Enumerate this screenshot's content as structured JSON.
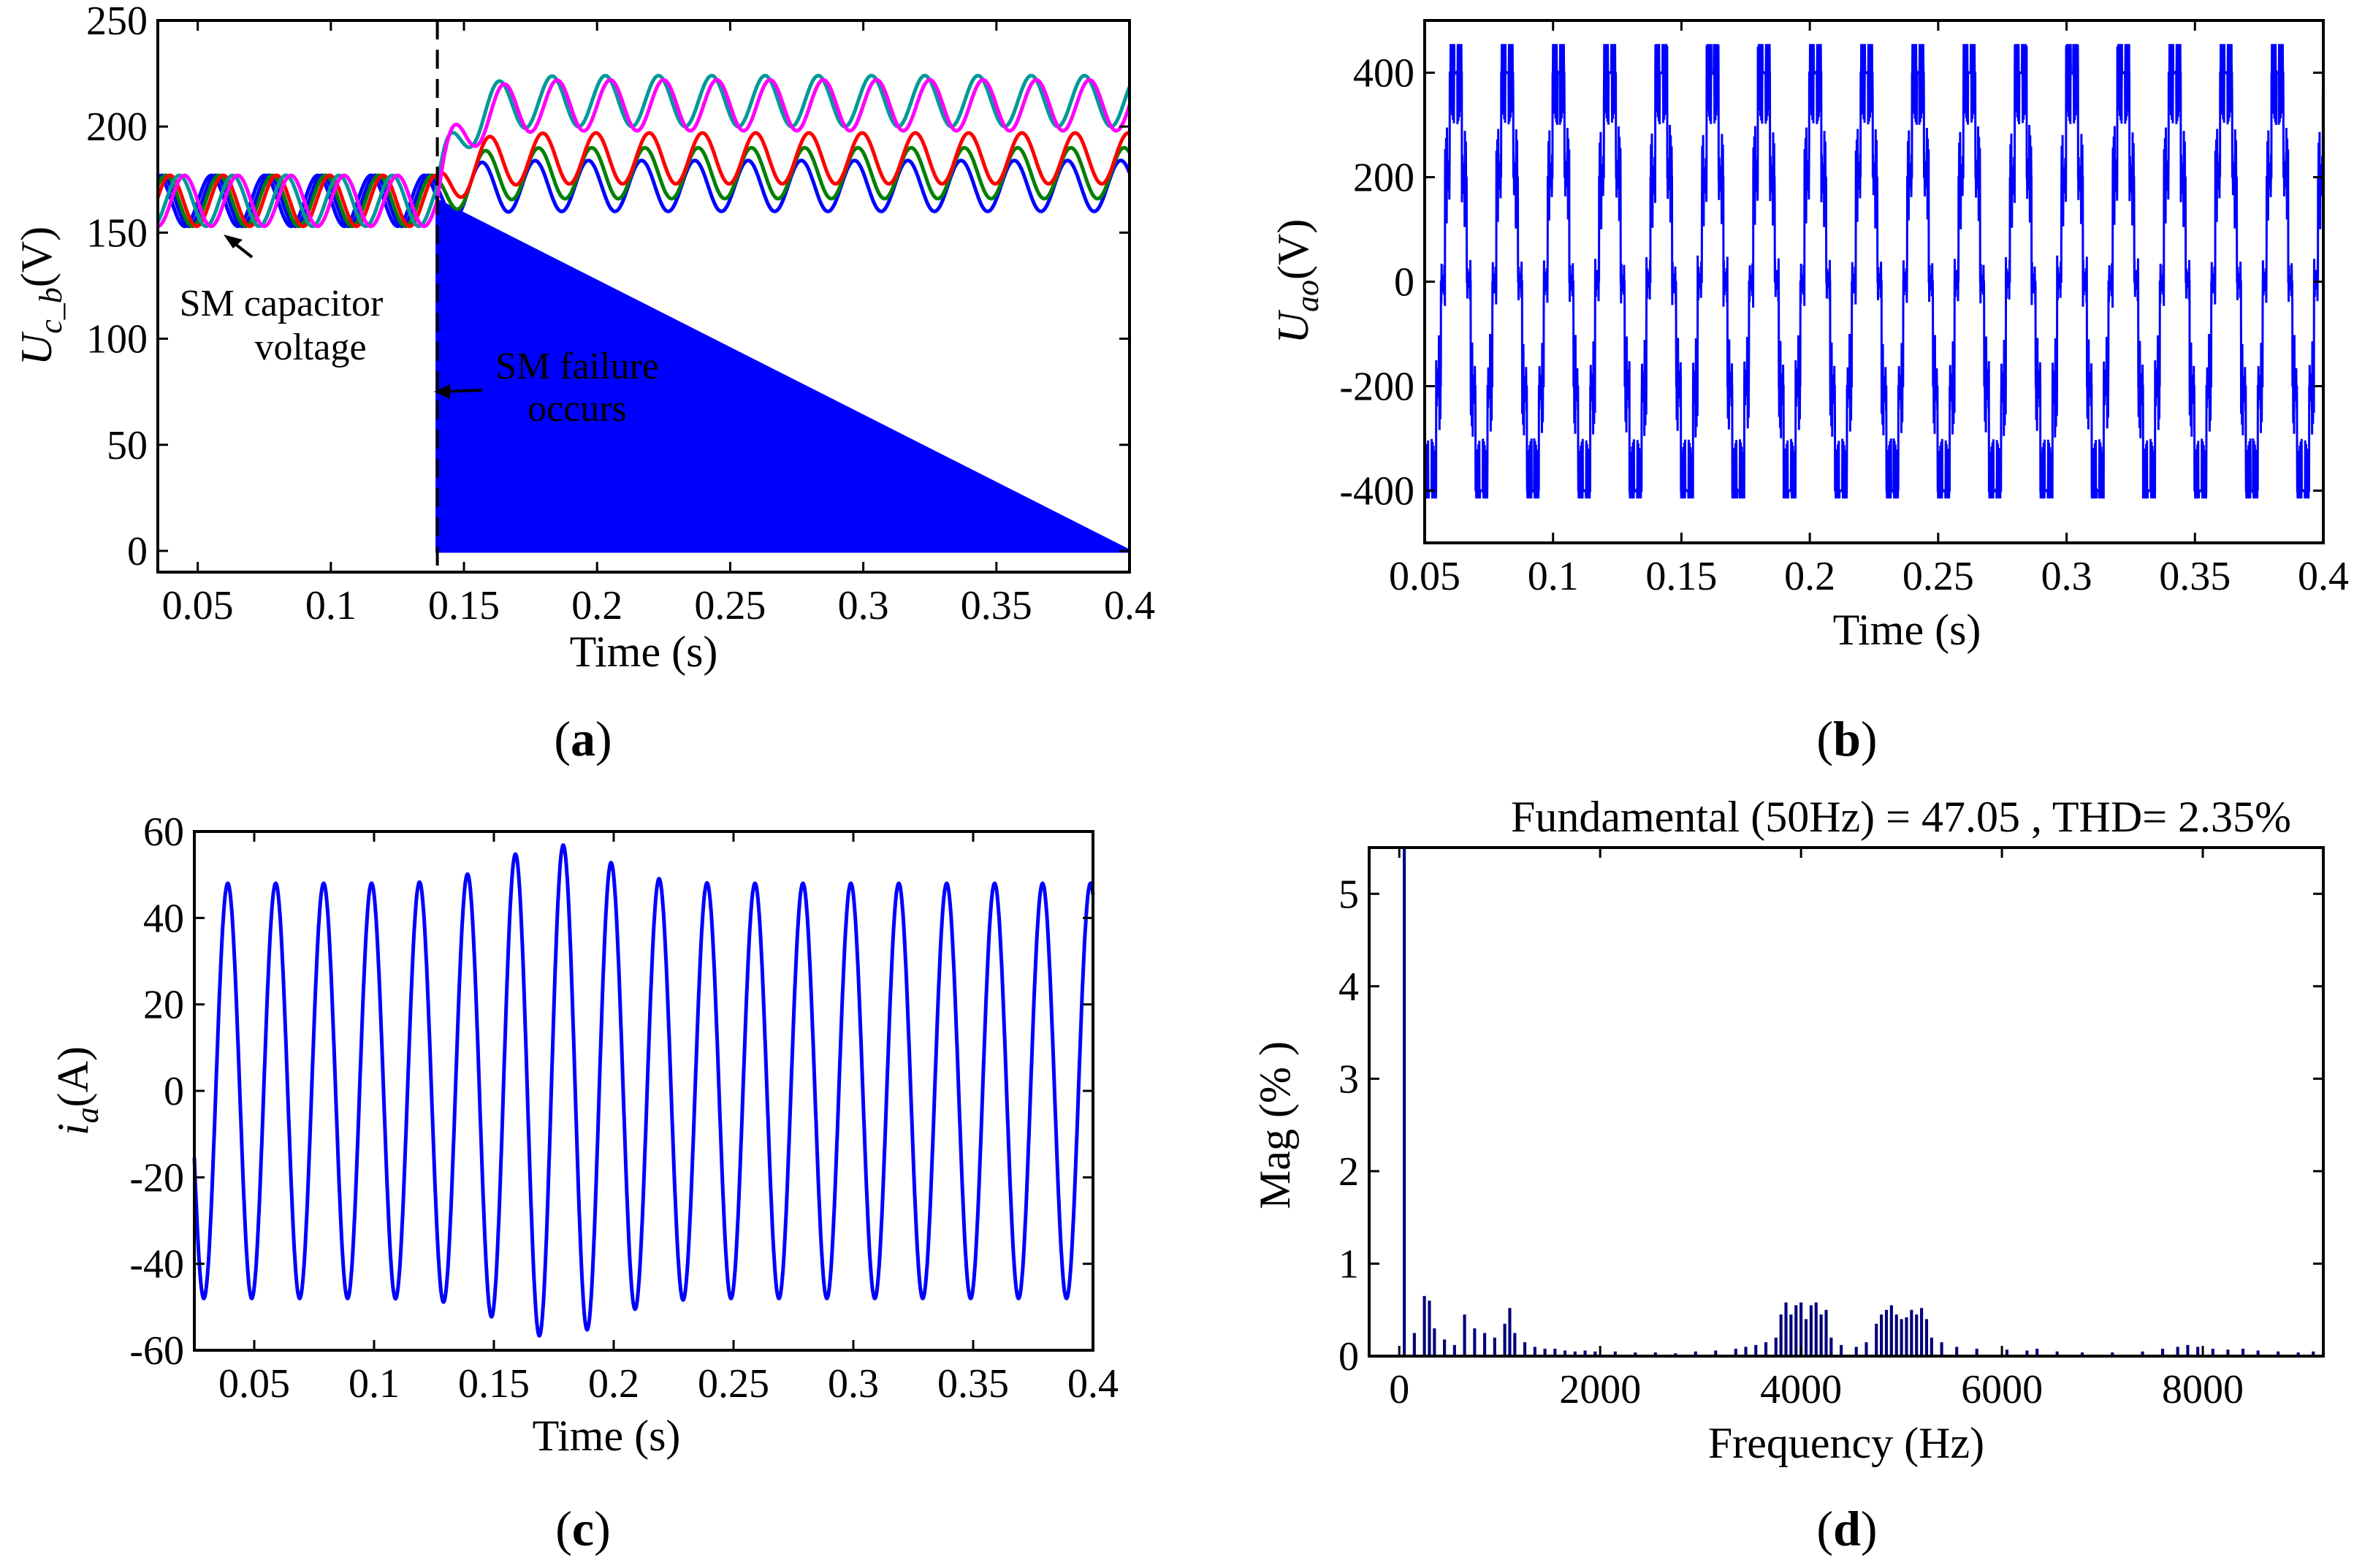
{
  "chart_data": [
    {
      "panel": "(a)",
      "panel_letter": "a",
      "type": "line",
      "xlabel": "Time (s)",
      "ylabel": "U_c_b(V)",
      "ylabel_main": "U",
      "ylabel_sub": "c_b",
      "ylabel_unit": "(V)",
      "xlim": [
        0.035,
        0.4
      ],
      "ylim": [
        -10,
        250
      ],
      "xticks": [
        0.05,
        0.1,
        0.15,
        0.2,
        0.25,
        0.3,
        0.35,
        0.4
      ],
      "xtick_labels": [
        "0.05",
        "0.1",
        "0.15",
        "0.2",
        "0.25",
        "0.3",
        "0.35",
        "0.4"
      ],
      "yticks": [
        0,
        50,
        100,
        150,
        200,
        250
      ],
      "ytick_labels": [
        "0",
        "50",
        "100",
        "150",
        "200",
        "250"
      ],
      "fault_time": 0.14,
      "ripple_period": 0.02,
      "series": [
        {
          "color": "#ff00ff",
          "pre_fault_mean": 165,
          "pre_fault_amplitude": 12,
          "post_fault_mean": 210,
          "post_fault_amplitude": 12
        },
        {
          "color": "#009999",
          "pre_fault_mean": 165,
          "pre_fault_amplitude": 12,
          "post_fault_mean": 212,
          "post_fault_amplitude": 12
        },
        {
          "color": "#ff0000",
          "pre_fault_mean": 165,
          "pre_fault_amplitude": 12,
          "post_fault_mean": 185,
          "post_fault_amplitude": 12
        },
        {
          "color": "#008000",
          "pre_fault_mean": 165,
          "pre_fault_amplitude": 12,
          "post_fault_mean": 178,
          "post_fault_amplitude": 12
        },
        {
          "color": "#0000ff",
          "pre_fault_mean": 165,
          "pre_fault_amplitude": 12,
          "post_fault_mean": 172,
          "post_fault_amplitude": 12
        },
        {
          "color": "#0000ff",
          "pre_fault_mean": 165,
          "pre_fault_amplitude": 12,
          "post_fault_value": 0
        }
      ],
      "annotations": [
        {
          "text_lines": [
            "SM capacitor",
            "voltage"
          ],
          "x": 0.06,
          "y": 110,
          "arrow_to": [
            0.071,
            160
          ]
        },
        {
          "text_lines": [
            "SM failure",
            "occurs"
          ],
          "x": 0.185,
          "y": 75,
          "arrow_to": [
            0.141,
            80
          ]
        }
      ]
    },
    {
      "panel": "(b)",
      "panel_letter": "b",
      "type": "line",
      "xlabel": "Time (s)",
      "ylabel": "U_ao(V)",
      "ylabel_main": "U",
      "ylabel_sub": "ao",
      "ylabel_unit": "(V)",
      "xlim": [
        0.05,
        0.4
      ],
      "ylim": [
        -500,
        500
      ],
      "xticks": [
        0.05,
        0.1,
        0.15,
        0.2,
        0.25,
        0.3,
        0.35,
        0.4
      ],
      "xtick_labels": [
        "0.05",
        "0.1",
        "0.15",
        "0.2",
        "0.25",
        "0.3",
        "0.35",
        "0.4"
      ],
      "yticks": [
        -400,
        -200,
        0,
        200,
        400
      ],
      "ytick_labels": [
        "-400",
        "-200",
        "0",
        "200",
        "400"
      ],
      "frequency_hz": 50,
      "peak_voltage": 415,
      "level_step": 200,
      "series": [
        {
          "color": "#0000ff"
        }
      ]
    },
    {
      "panel": "(c)",
      "panel_letter": "c",
      "type": "line",
      "xlabel": "Time (s)",
      "ylabel": "i_a(A)",
      "ylabel_main": "i",
      "ylabel_sub": "a",
      "ylabel_unit": "(A)",
      "xlim": [
        0.025,
        0.4
      ],
      "ylim": [
        -60,
        60
      ],
      "xticks": [
        0.05,
        0.1,
        0.15,
        0.2,
        0.25,
        0.3,
        0.35,
        0.4
      ],
      "xtick_labels": [
        "0.05",
        "0.1",
        "0.15",
        "0.2",
        "0.25",
        "0.3",
        "0.35",
        "0.4"
      ],
      "yticks": [
        -60,
        -40,
        -20,
        0,
        20,
        40,
        60
      ],
      "ytick_labels": [
        "-60",
        "-40",
        "-20",
        "0",
        "20",
        "40",
        "60"
      ],
      "frequency_hz": 50,
      "amplitude": 48,
      "transient_peak": 57,
      "transient_trough": -52,
      "series": [
        {
          "color": "#0000ff"
        }
      ]
    },
    {
      "panel": "(d)",
      "panel_letter": "d",
      "type": "bar",
      "title": "Fundamental (50Hz) = 47.05 , THD= 2.35%",
      "xlabel": "Frequency (Hz)",
      "ylabel": "Mag (% )",
      "xlim": [
        -300,
        9200
      ],
      "ylim": [
        0,
        5.5
      ],
      "xticks": [
        0,
        2000,
        4000,
        6000,
        8000
      ],
      "xtick_labels": [
        "0",
        "2000",
        "4000",
        "6000",
        "8000"
      ],
      "yticks": [
        0,
        1,
        2,
        3,
        4,
        5
      ],
      "ytick_labels": [
        "0",
        "1",
        "2",
        "3",
        "4",
        "5"
      ],
      "fundamental_hz": 50,
      "fundamental_magnitude_pct": 47.05,
      "thd_pct": 2.35,
      "bar_color": "#00007a",
      "harmonics": [
        {
          "f": 50,
          "mag": 5.5
        },
        {
          "f": 150,
          "mag": 0.25
        },
        {
          "f": 250,
          "mag": 0.65
        },
        {
          "f": 300,
          "mag": 0.6
        },
        {
          "f": 350,
          "mag": 0.3
        },
        {
          "f": 450,
          "mag": 0.18
        },
        {
          "f": 550,
          "mag": 0.12
        },
        {
          "f": 650,
          "mag": 0.45
        },
        {
          "f": 750,
          "mag": 0.3
        },
        {
          "f": 850,
          "mag": 0.25
        },
        {
          "f": 950,
          "mag": 0.2
        },
        {
          "f": 1050,
          "mag": 0.35
        },
        {
          "f": 1100,
          "mag": 0.52
        },
        {
          "f": 1150,
          "mag": 0.25
        },
        {
          "f": 1250,
          "mag": 0.15
        },
        {
          "f": 1350,
          "mag": 0.1
        },
        {
          "f": 1450,
          "mag": 0.08
        },
        {
          "f": 1550,
          "mag": 0.08
        },
        {
          "f": 1650,
          "mag": 0.06
        },
        {
          "f": 1750,
          "mag": 0.05
        },
        {
          "f": 1850,
          "mag": 0.06
        },
        {
          "f": 1950,
          "mag": 0.05
        },
        {
          "f": 2150,
          "mag": 0.05
        },
        {
          "f": 2350,
          "mag": 0.04
        },
        {
          "f": 2550,
          "mag": 0.04
        },
        {
          "f": 2750,
          "mag": 0.03
        },
        {
          "f": 2950,
          "mag": 0.05
        },
        {
          "f": 3150,
          "mag": 0.06
        },
        {
          "f": 3350,
          "mag": 0.08
        },
        {
          "f": 3450,
          "mag": 0.1
        },
        {
          "f": 3550,
          "mag": 0.12
        },
        {
          "f": 3650,
          "mag": 0.15
        },
        {
          "f": 3750,
          "mag": 0.2
        },
        {
          "f": 3800,
          "mag": 0.45
        },
        {
          "f": 3850,
          "mag": 0.58
        },
        {
          "f": 3900,
          "mag": 0.45
        },
        {
          "f": 3950,
          "mag": 0.55
        },
        {
          "f": 4000,
          "mag": 0.58
        },
        {
          "f": 4050,
          "mag": 0.4
        },
        {
          "f": 4100,
          "mag": 0.55
        },
        {
          "f": 4150,
          "mag": 0.58
        },
        {
          "f": 4200,
          "mag": 0.45
        },
        {
          "f": 4250,
          "mag": 0.5
        },
        {
          "f": 4300,
          "mag": 0.2
        },
        {
          "f": 4400,
          "mag": 0.12
        },
        {
          "f": 4550,
          "mag": 0.1
        },
        {
          "f": 4650,
          "mag": 0.15
        },
        {
          "f": 4750,
          "mag": 0.35
        },
        {
          "f": 4800,
          "mag": 0.45
        },
        {
          "f": 4850,
          "mag": 0.5
        },
        {
          "f": 4900,
          "mag": 0.55
        },
        {
          "f": 4950,
          "mag": 0.45
        },
        {
          "f": 5000,
          "mag": 0.4
        },
        {
          "f": 5050,
          "mag": 0.42
        },
        {
          "f": 5100,
          "mag": 0.5
        },
        {
          "f": 5150,
          "mag": 0.45
        },
        {
          "f": 5200,
          "mag": 0.52
        },
        {
          "f": 5250,
          "mag": 0.4
        },
        {
          "f": 5300,
          "mag": 0.2
        },
        {
          "f": 5400,
          "mag": 0.15
        },
        {
          "f": 5550,
          "mag": 0.1
        },
        {
          "f": 5750,
          "mag": 0.08
        },
        {
          "f": 6050,
          "mag": 0.07
        },
        {
          "f": 6250,
          "mag": 0.06
        },
        {
          "f": 6350,
          "mag": 0.08
        },
        {
          "f": 6550,
          "mag": 0.05
        },
        {
          "f": 6800,
          "mag": 0.04
        },
        {
          "f": 7100,
          "mag": 0.04
        },
        {
          "f": 7400,
          "mag": 0.05
        },
        {
          "f": 7600,
          "mag": 0.08
        },
        {
          "f": 7750,
          "mag": 0.1
        },
        {
          "f": 7850,
          "mag": 0.12
        },
        {
          "f": 7950,
          "mag": 0.1
        },
        {
          "f": 8100,
          "mag": 0.08
        },
        {
          "f": 8250,
          "mag": 0.07
        },
        {
          "f": 8400,
          "mag": 0.08
        },
        {
          "f": 8550,
          "mag": 0.06
        },
        {
          "f": 8750,
          "mag": 0.05
        },
        {
          "f": 8950,
          "mag": 0.04
        },
        {
          "f": 9100,
          "mag": 0.05
        }
      ]
    }
  ]
}
